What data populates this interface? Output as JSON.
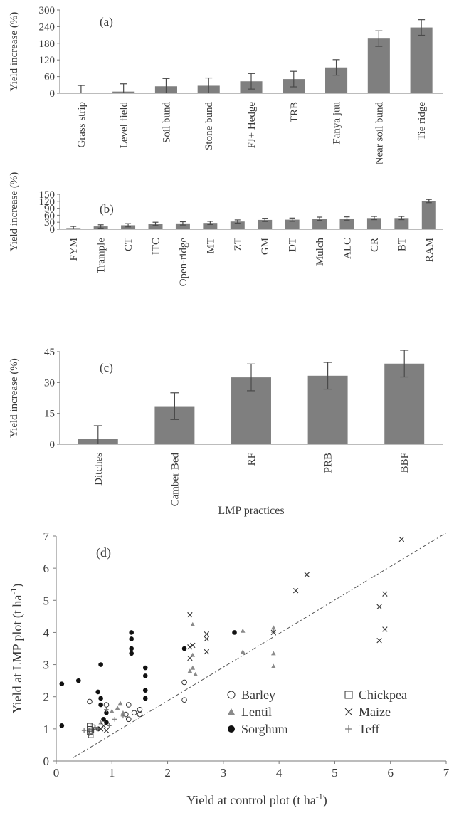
{
  "chart_data": [
    {
      "panel": "(a)",
      "type": "bar",
      "ylabel": "Yield increase (%)",
      "ylim": [
        0,
        300
      ],
      "yticks": [
        0,
        60,
        120,
        180,
        240,
        300
      ],
      "categories": [
        "Grass strip",
        "Level field",
        "Soil bund",
        "Stone bund",
        "FJ+ Hedge",
        "TRB",
        "Fanya juu",
        "Near soil bund",
        "Tie ridge"
      ],
      "values": [
        0,
        6,
        25,
        27,
        43,
        51,
        93,
        197,
        237
      ],
      "errors": [
        28,
        28,
        28,
        28,
        28,
        28,
        28,
        28,
        28
      ],
      "color": "#7f7f7f"
    },
    {
      "panel": "(b)",
      "type": "bar",
      "ylabel": "Yield increase (%)",
      "ylim": [
        0,
        150
      ],
      "yticks": [
        0,
        30,
        60,
        90,
        120,
        150
      ],
      "categories": [
        "FYM",
        "Trample",
        "CT",
        "ITC",
        "Open-ridge",
        "MT",
        "ZT",
        "GM",
        "DT",
        "Mulch",
        "ALC",
        "CR",
        "BT",
        "RAM"
      ],
      "values": [
        5,
        12,
        17,
        23,
        25,
        27,
        33,
        40,
        41,
        45,
        46,
        48,
        48,
        121
      ],
      "errors": [
        7,
        7,
        7,
        7,
        7,
        7,
        7,
        7,
        7,
        7,
        7,
        7,
        7,
        7
      ],
      "color": "#7f7f7f"
    },
    {
      "panel": "(c)",
      "type": "bar",
      "ylabel": "Yield increase (%)",
      "xlabel": "LMP practices",
      "ylim": [
        0,
        45
      ],
      "yticks": [
        0,
        15,
        30,
        45
      ],
      "categories": [
        "Ditches",
        "Camber Bed",
        "RF",
        "PRB",
        "BBF"
      ],
      "values": [
        2.5,
        18.5,
        32.5,
        33.3,
        39.2
      ],
      "errors": [
        6.5,
        6.5,
        6.5,
        6.5,
        6.5
      ],
      "color": "#7f7f7f"
    },
    {
      "panel": "(d)",
      "type": "scatter",
      "xlabel": "Yield at control plot (t ha",
      "xlabel_sup": "-1",
      "xlabel_end": ")",
      "ylabel": "Yield at LMP plot (t ha",
      "ylabel_sup": "-1",
      "ylabel_end": ")",
      "xlim": [
        0,
        7
      ],
      "ylim": [
        0,
        7
      ],
      "xticks": [
        0,
        1,
        2,
        3,
        4,
        5,
        6,
        7
      ],
      "yticks": [
        0,
        1,
        2,
        3,
        4,
        5,
        6,
        7
      ],
      "reference_line": {
        "x": [
          0.3,
          7
        ],
        "y": [
          0.1,
          7.1
        ]
      },
      "series": [
        {
          "name": "Barley",
          "marker": "circle-open",
          "points": [
            [
              0.6,
              1.85
            ],
            [
              0.9,
              1.75
            ],
            [
              1.3,
              1.75
            ],
            [
              1.3,
              1.3
            ],
            [
              1.5,
              1.6
            ],
            [
              1.5,
              1.45
            ],
            [
              1.4,
              1.5
            ],
            [
              2.3,
              2.45
            ],
            [
              2.3,
              1.9
            ],
            [
              1.25,
              1.45
            ]
          ]
        },
        {
          "name": "Chickpea",
          "marker": "square-open",
          "points": [
            [
              0.6,
              1.1
            ],
            [
              0.6,
              1.0
            ],
            [
              0.6,
              0.9
            ],
            [
              0.62,
              0.8
            ],
            [
              0.65,
              1.05
            ],
            [
              0.63,
              0.95
            ]
          ]
        },
        {
          "name": "Lentil",
          "marker": "triangle",
          "points": [
            [
              0.8,
              1.2
            ],
            [
              1.0,
              1.55
            ],
            [
              1.1,
              1.65
            ],
            [
              1.15,
              1.8
            ],
            [
              1.2,
              1.5
            ],
            [
              2.45,
              4.25
            ],
            [
              2.45,
              3.3
            ],
            [
              2.45,
              2.9
            ],
            [
              2.5,
              2.7
            ],
            [
              3.35,
              4.05
            ],
            [
              3.35,
              3.4
            ],
            [
              3.9,
              3.35
            ],
            [
              3.9,
              2.95
            ],
            [
              3.9,
              4.15
            ],
            [
              3.9,
              4.05
            ],
            [
              2.4,
              2.8
            ]
          ]
        },
        {
          "name": "Maize",
          "marker": "x",
          "points": [
            [
              0.8,
              1.0
            ],
            [
              0.85,
              1.1
            ],
            [
              0.9,
              0.95
            ],
            [
              2.4,
              4.55
            ],
            [
              2.4,
              3.55
            ],
            [
              2.45,
              3.6
            ],
            [
              2.4,
              3.2
            ],
            [
              2.7,
              3.95
            ],
            [
              2.7,
              3.8
            ],
            [
              2.7,
              3.4
            ],
            [
              4.3,
              5.3
            ],
            [
              4.5,
              5.8
            ],
            [
              5.8,
              4.8
            ],
            [
              5.8,
              3.75
            ],
            [
              5.9,
              5.2
            ],
            [
              5.9,
              4.1
            ],
            [
              6.2,
              6.9
            ],
            [
              3.9,
              4.0
            ]
          ]
        },
        {
          "name": "Sorghum",
          "marker": "circle-filled",
          "points": [
            [
              0.1,
              2.4
            ],
            [
              0.1,
              1.1
            ],
            [
              0.4,
              2.5
            ],
            [
              0.75,
              2.15
            ],
            [
              0.8,
              1.95
            ],
            [
              0.8,
              1.75
            ],
            [
              0.8,
              3.0
            ],
            [
              0.9,
              1.5
            ],
            [
              0.9,
              1.2
            ],
            [
              1.35,
              4.0
            ],
            [
              1.35,
              3.8
            ],
            [
              1.35,
              3.5
            ],
            [
              1.35,
              3.35
            ],
            [
              1.6,
              2.9
            ],
            [
              1.6,
              2.65
            ],
            [
              1.6,
              2.2
            ],
            [
              1.6,
              1.95
            ],
            [
              2.3,
              3.5
            ],
            [
              3.2,
              4.0
            ],
            [
              0.75,
              1.0
            ],
            [
              0.85,
              1.3
            ]
          ]
        },
        {
          "name": "Teff",
          "marker": "plus",
          "points": [
            [
              0.5,
              0.95
            ],
            [
              0.6,
              0.85
            ],
            [
              0.75,
              1.0
            ],
            [
              0.95,
              1.1
            ],
            [
              1.05,
              1.3
            ],
            [
              1.2,
              1.4
            ],
            [
              0.7,
              1.05
            ],
            [
              0.9,
              1.6
            ]
          ]
        }
      ]
    }
  ]
}
